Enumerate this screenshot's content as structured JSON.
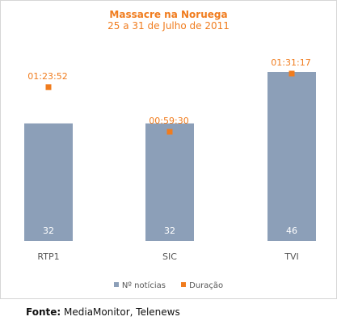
{
  "colors": {
    "bar": "#8c9fb8",
    "marker": "#f07c1e",
    "title": "#f07c1e",
    "axis_text": "#555555"
  },
  "source": {
    "label": "Fonte:",
    "text": "MediaMonitor, Telenews"
  },
  "chart_data": {
    "type": "bar",
    "title": "Massacre na Noruega",
    "subtitle": "25 a 31 de Julho de 2011",
    "categories": [
      "RTP1",
      "SIC",
      "TVI"
    ],
    "series": [
      {
        "name": "Nº notícias",
        "type": "bar",
        "values": [
          32,
          32,
          46
        ]
      },
      {
        "name": "Duração",
        "type": "marker",
        "values": [
          "01:23:52",
          "00:59:30",
          "01:31:17"
        ],
        "seconds": [
          5032,
          3570,
          5477
        ]
      }
    ],
    "legend_position": "bottom",
    "grid": false
  }
}
